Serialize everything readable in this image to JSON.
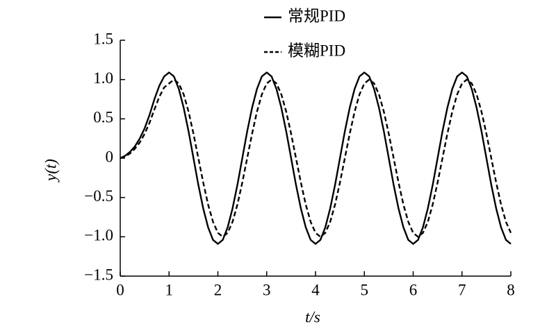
{
  "chart_data": {
    "type": "line",
    "xlabel": "t/s",
    "ylabel": "y(t)",
    "x": [
      0,
      0.1,
      0.2,
      0.3,
      0.4,
      0.5,
      0.6,
      0.7,
      0.8,
      0.9,
      1,
      1.1,
      1.2,
      1.3,
      1.4,
      1.5,
      1.6,
      1.7,
      1.8,
      1.9,
      2,
      2.1,
      2.2,
      2.3,
      2.4,
      2.5,
      2.6,
      2.7,
      2.8,
      2.9,
      3,
      3.1,
      3.2,
      3.3,
      3.4,
      3.5,
      3.6,
      3.7,
      3.8,
      3.9,
      4,
      4.1,
      4.2,
      4.3,
      4.4,
      4.5,
      4.6,
      4.7,
      4.8,
      4.9,
      5,
      5.1,
      5.2,
      5.3,
      5.4,
      5.5,
      5.6,
      5.7,
      5.8,
      5.9,
      6,
      6.1,
      6.2,
      6.3,
      6.4,
      6.5,
      6.6,
      6.7,
      6.8,
      6.9,
      7,
      7.1,
      7.2,
      7.3,
      7.4,
      7.5,
      7.6,
      7.7,
      7.8,
      7.9,
      8
    ],
    "series": [
      {
        "name": "常规PID",
        "color": "#000000",
        "dash": false,
        "values": [
          0,
          0.03,
          0.08,
          0.15,
          0.25,
          0.38,
          0.55,
          0.75,
          0.92,
          1.04,
          1.09,
          1.04,
          0.88,
          0.64,
          0.34,
          0,
          -0.34,
          -0.64,
          -0.88,
          -1.04,
          -1.09,
          -1.04,
          -0.88,
          -0.64,
          -0.34,
          0,
          0.34,
          0.64,
          0.88,
          1.04,
          1.09,
          1.04,
          0.88,
          0.64,
          0.34,
          0,
          -0.34,
          -0.64,
          -0.88,
          -1.04,
          -1.09,
          -1.04,
          -0.88,
          -0.64,
          -0.34,
          0,
          0.34,
          0.64,
          0.88,
          1.04,
          1.09,
          1.04,
          0.88,
          0.64,
          0.34,
          0,
          -0.34,
          -0.64,
          -0.88,
          -1.04,
          -1.09,
          -1.04,
          -0.88,
          -0.64,
          -0.34,
          0,
          0.34,
          0.64,
          0.88,
          1.04,
          1.09,
          1.04,
          0.88,
          0.64,
          0.34,
          0,
          -0.34,
          -0.64,
          -0.88,
          -1.04,
          -1.09
        ]
      },
      {
        "name": "模糊PID",
        "color": "#000000",
        "dash": true,
        "values": [
          0,
          0.02,
          0.06,
          0.12,
          0.2,
          0.31,
          0.45,
          0.62,
          0.78,
          0.9,
          0.95,
          1.0,
          0.95,
          0.81,
          0.59,
          0.31,
          0,
          -0.31,
          -0.59,
          -0.81,
          -0.95,
          -1.0,
          -0.95,
          -0.81,
          -0.59,
          -0.31,
          0,
          0.31,
          0.59,
          0.81,
          0.95,
          1.0,
          0.95,
          0.81,
          0.59,
          0.31,
          0,
          -0.31,
          -0.59,
          -0.81,
          -0.95,
          -1.0,
          -0.95,
          -0.81,
          -0.59,
          -0.31,
          0,
          0.31,
          0.59,
          0.81,
          0.95,
          1.0,
          0.95,
          0.81,
          0.59,
          0.31,
          0,
          -0.31,
          -0.59,
          -0.81,
          -0.95,
          -1.0,
          -0.95,
          -0.81,
          -0.59,
          -0.31,
          0,
          0.31,
          0.59,
          0.81,
          0.95,
          1.0,
          0.95,
          0.81,
          0.59,
          0.31,
          0,
          -0.31,
          -0.59,
          -0.81,
          -0.95
        ]
      }
    ],
    "xlim": [
      0,
      8
    ],
    "xticks": [
      0,
      1,
      2,
      3,
      4,
      5,
      6,
      7,
      8
    ],
    "ylim": [
      -1.5,
      1.5
    ],
    "yticks": [
      {
        "value": -1.5,
        "label": "−1.5"
      },
      {
        "value": -1,
        "label": "−1.0"
      },
      {
        "value": -0.5,
        "label": "−0.5"
      },
      0,
      {
        "value": 0.5,
        "label": "0.5"
      },
      {
        "value": 1,
        "label": "1.0"
      },
      {
        "value": 1.5,
        "label": "1.5"
      }
    ],
    "grid": false,
    "legend": "top"
  }
}
